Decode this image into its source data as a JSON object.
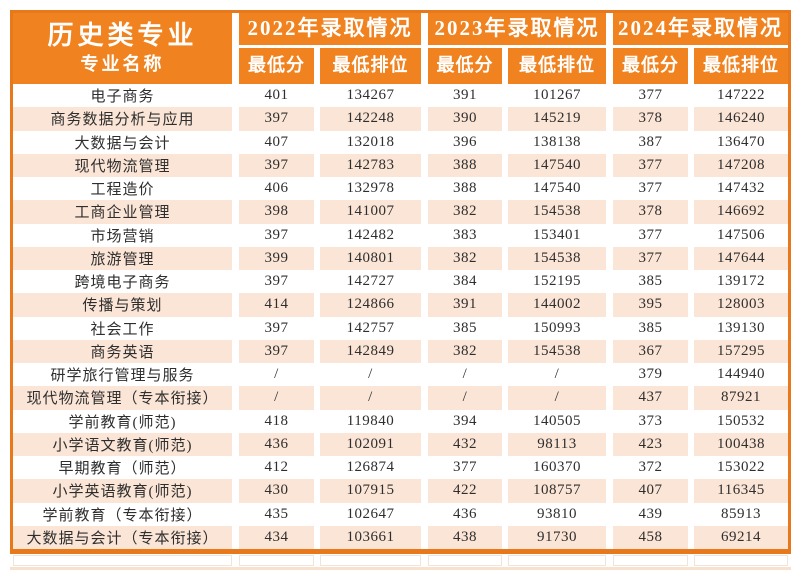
{
  "chart_data": {
    "type": "table",
    "title": "历史类专业",
    "major_header": "专业名称",
    "year_groups": [
      "2022年录取情况",
      "2023年录取情况",
      "2024年录取情况"
    ],
    "sub_headers": [
      "最低分",
      "最低排位"
    ],
    "rows": [
      {
        "major": "电子商务",
        "values": [
          "401",
          "134267",
          "391",
          "101267",
          "377",
          "147222"
        ]
      },
      {
        "major": "商务数据分析与应用",
        "values": [
          "397",
          "142248",
          "390",
          "145219",
          "378",
          "146240"
        ]
      },
      {
        "major": "大数据与会计",
        "values": [
          "407",
          "132018",
          "396",
          "138138",
          "387",
          "136470"
        ]
      },
      {
        "major": "现代物流管理",
        "values": [
          "397",
          "142783",
          "388",
          "147540",
          "377",
          "147208"
        ]
      },
      {
        "major": "工程造价",
        "values": [
          "406",
          "132978",
          "388",
          "147540",
          "377",
          "147432"
        ]
      },
      {
        "major": "工商企业管理",
        "values": [
          "398",
          "141007",
          "382",
          "154538",
          "378",
          "146692"
        ]
      },
      {
        "major": "市场营销",
        "values": [
          "397",
          "142482",
          "383",
          "153401",
          "377",
          "147506"
        ]
      },
      {
        "major": "旅游管理",
        "values": [
          "399",
          "140801",
          "382",
          "154538",
          "377",
          "147644"
        ]
      },
      {
        "major": "跨境电子商务",
        "values": [
          "397",
          "142727",
          "384",
          "152195",
          "385",
          "139172"
        ]
      },
      {
        "major": "传播与策划",
        "values": [
          "414",
          "124866",
          "391",
          "144002",
          "395",
          "128003"
        ]
      },
      {
        "major": "社会工作",
        "values": [
          "397",
          "142757",
          "385",
          "150993",
          "385",
          "139130"
        ]
      },
      {
        "major": "商务英语",
        "values": [
          "397",
          "142849",
          "382",
          "154538",
          "367",
          "157295"
        ]
      },
      {
        "major": "研学旅行管理与服务",
        "values": [
          "/",
          "/",
          "/",
          "/",
          "379",
          "144940"
        ]
      },
      {
        "major": "现代物流管理（专本衔接）",
        "values": [
          "/",
          "/",
          "/",
          "/",
          "437",
          "87921"
        ]
      },
      {
        "major": "学前教育(师范)",
        "values": [
          "418",
          "119840",
          "394",
          "140505",
          "373",
          "150532"
        ]
      },
      {
        "major": "小学语文教育(师范)",
        "values": [
          "436",
          "102091",
          "432",
          "98113",
          "423",
          "100438"
        ]
      },
      {
        "major": "早期教育（师范）",
        "values": [
          "412",
          "126874",
          "377",
          "160370",
          "372",
          "153022"
        ]
      },
      {
        "major": "小学英语教育(师范)",
        "values": [
          "430",
          "107915",
          "422",
          "108757",
          "407",
          "116345"
        ]
      },
      {
        "major": "学前教育（专本衔接）",
        "values": [
          "435",
          "102647",
          "436",
          "93810",
          "439",
          "85913"
        ]
      },
      {
        "major": "大数据与会计（专本衔接）",
        "values": [
          "434",
          "103661",
          "438",
          "91730",
          "458",
          "69214"
        ]
      }
    ]
  },
  "colors": {
    "header_orange": "#F0821F",
    "border_orange": "#E8781C",
    "row_peach": "#FBE5D6",
    "row_white": "#FFFFFF",
    "header_text": "#FFFFFF",
    "data_text": "#2E2E2E"
  }
}
